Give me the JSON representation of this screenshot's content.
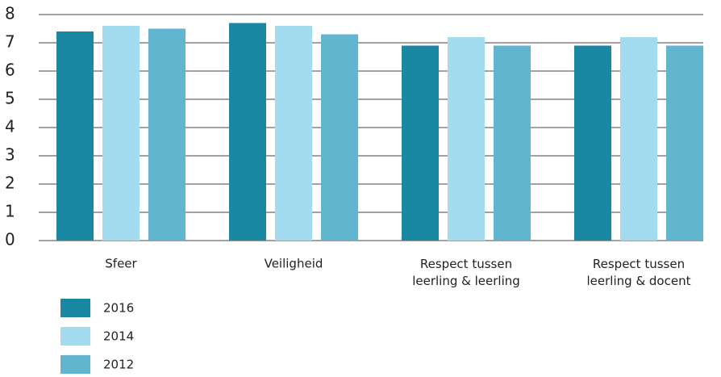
{
  "chart_data": {
    "type": "bar",
    "categories": [
      "Sfeer",
      "Veiligheid",
      "Respect tussen\nleerling & leerling",
      "Respect tussen\nleerling & docent"
    ],
    "series": [
      {
        "name": "2016",
        "color": "#1a88a3",
        "values": [
          7.4,
          7.7,
          6.9,
          6.9
        ]
      },
      {
        "name": "2014",
        "color": "#a3dcef",
        "values": [
          7.6,
          7.6,
          7.2,
          7.2
        ]
      },
      {
        "name": "2012",
        "color": "#62b5cf",
        "values": [
          7.5,
          7.3,
          6.9,
          6.9
        ]
      }
    ],
    "ylim": [
      0,
      8
    ],
    "yticks": [
      0,
      1,
      2,
      3,
      4,
      5,
      6,
      7,
      8
    ],
    "grid": true
  }
}
